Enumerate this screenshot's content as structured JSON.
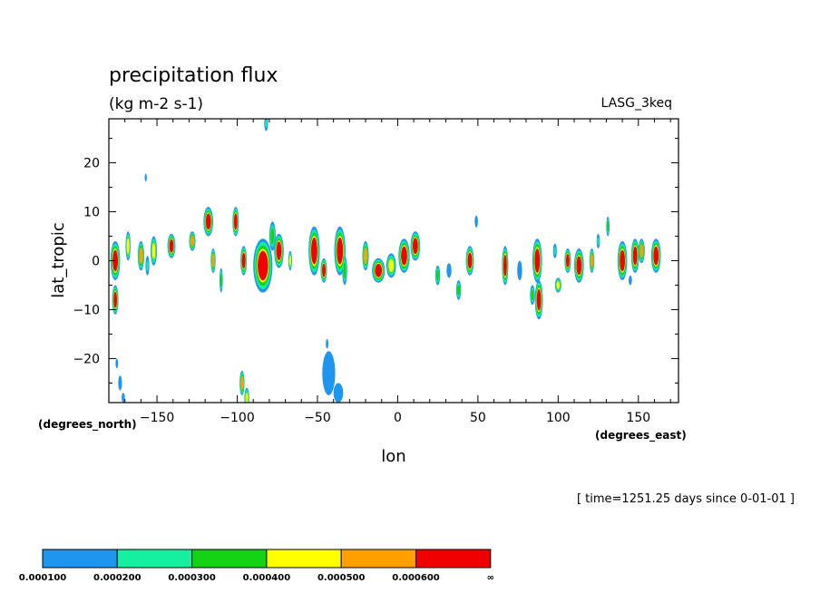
{
  "chart_data": {
    "type": "heatmap",
    "title": "precipitation flux",
    "subtitle": "(kg m-2 s-1)",
    "model_label": "LASG_3keq",
    "xlabel": "lon",
    "ylabel": "lat_tropic",
    "x_unit": "(degrees_east)",
    "y_unit": "(degrees_north)",
    "time_label": "[ time=1251.25 days since 0-01-01 ]",
    "xlim": [
      -180,
      175
    ],
    "ylim": [
      -29,
      29
    ],
    "x_ticks": [
      -150,
      -100,
      -50,
      0,
      50,
      100,
      150
    ],
    "y_ticks": [
      20,
      10,
      0,
      -10,
      -20
    ],
    "x_tick_labels": [
      "−150",
      "−100",
      "−50",
      "0",
      "50",
      "100",
      "150"
    ],
    "y_tick_labels": [
      "20",
      "10",
      "0",
      "−10",
      "−20"
    ],
    "levels": [
      0.0001,
      0.0002,
      0.0003,
      0.0004,
      0.0005,
      0.0006
    ],
    "colorbar_labels": [
      "0.000100",
      "0.000200",
      "0.000300",
      "0.000400",
      "0.000500",
      "0.000600",
      "∞"
    ],
    "colors": [
      "#1e96f0",
      "#14f0a0",
      "#14d214",
      "#ffff00",
      "#ffa000",
      "#f00000"
    ],
    "cells": [
      {
        "lon": -176,
        "lat": 0,
        "rx": 3,
        "ry": 4,
        "level": 6
      },
      {
        "lon": -168,
        "lat": 3,
        "rx": 1.5,
        "ry": 3,
        "level": 4
      },
      {
        "lon": -176,
        "lat": -8,
        "rx": 2,
        "ry": 3,
        "level": 6
      },
      {
        "lon": -175,
        "lat": -21,
        "rx": 0.8,
        "ry": 1,
        "level": 1
      },
      {
        "lon": -173,
        "lat": -25,
        "rx": 1.2,
        "ry": 1.5,
        "level": 1
      },
      {
        "lon": -171,
        "lat": -28,
        "rx": 1,
        "ry": 1,
        "level": 1
      },
      {
        "lon": -160,
        "lat": 1,
        "rx": 2,
        "ry": 3,
        "level": 5
      },
      {
        "lon": -152,
        "lat": 2,
        "rx": 2,
        "ry": 3,
        "level": 4
      },
      {
        "lon": -156,
        "lat": -1,
        "rx": 1.2,
        "ry": 2,
        "level": 2
      },
      {
        "lon": -157,
        "lat": 17,
        "rx": 0.6,
        "ry": 0.8,
        "level": 1
      },
      {
        "lon": -141,
        "lat": 3,
        "rx": 2.5,
        "ry": 2.5,
        "level": 6
      },
      {
        "lon": -128,
        "lat": 4,
        "rx": 2,
        "ry": 2,
        "level": 5
      },
      {
        "lon": -118,
        "lat": 8,
        "rx": 3,
        "ry": 3,
        "level": 6
      },
      {
        "lon": -115,
        "lat": 0,
        "rx": 1.5,
        "ry": 2.5,
        "level": 5
      },
      {
        "lon": -110,
        "lat": -4,
        "rx": 1,
        "ry": 2.5,
        "level": 3
      },
      {
        "lon": -101,
        "lat": 8,
        "rx": 2,
        "ry": 3,
        "level": 6
      },
      {
        "lon": -96,
        "lat": 0,
        "rx": 2,
        "ry": 3,
        "level": 6
      },
      {
        "lon": -84,
        "lat": -1,
        "rx": 6,
        "ry": 5.5,
        "level": 6
      },
      {
        "lon": -74,
        "lat": 2,
        "rx": 3,
        "ry": 3.5,
        "level": 6
      },
      {
        "lon": -67,
        "lat": 0,
        "rx": 1.2,
        "ry": 2,
        "level": 4
      },
      {
        "lon": -78,
        "lat": 5,
        "rx": 2,
        "ry": 3,
        "level": 3
      },
      {
        "lon": -97,
        "lat": -25,
        "rx": 1.5,
        "ry": 2.5,
        "level": 5
      },
      {
        "lon": -94,
        "lat": -28,
        "rx": 1.5,
        "ry": 2,
        "level": 4
      },
      {
        "lon": -82,
        "lat": 28,
        "rx": 1.2,
        "ry": 1.5,
        "level": 2
      },
      {
        "lon": -52,
        "lat": 2,
        "rx": 3.5,
        "ry": 5,
        "level": 6
      },
      {
        "lon": -46,
        "lat": -2,
        "rx": 2,
        "ry": 2.5,
        "level": 6
      },
      {
        "lon": -36,
        "lat": 2,
        "rx": 3.5,
        "ry": 5,
        "level": 6
      },
      {
        "lon": -33,
        "lat": -2,
        "rx": 1.5,
        "ry": 3,
        "level": 3
      },
      {
        "lon": -43,
        "lat": -23,
        "rx": 4,
        "ry": 4.5,
        "level": 1
      },
      {
        "lon": -37,
        "lat": -27,
        "rx": 3,
        "ry": 2,
        "level": 1
      },
      {
        "lon": -44,
        "lat": -17,
        "rx": 0.8,
        "ry": 1,
        "level": 1
      },
      {
        "lon": -20,
        "lat": 1,
        "rx": 2,
        "ry": 3,
        "level": 5
      },
      {
        "lon": -12,
        "lat": -2,
        "rx": 4,
        "ry": 2.5,
        "level": 6
      },
      {
        "lon": -4,
        "lat": -1,
        "rx": 3,
        "ry": 2.5,
        "level": 4
      },
      {
        "lon": 4,
        "lat": 1,
        "rx": 3.5,
        "ry": 3.5,
        "level": 6
      },
      {
        "lon": 11,
        "lat": 3,
        "rx": 3,
        "ry": 3,
        "level": 6
      },
      {
        "lon": 25,
        "lat": -3,
        "rx": 1.5,
        "ry": 2,
        "level": 3
      },
      {
        "lon": 32,
        "lat": -2,
        "rx": 1.5,
        "ry": 1.5,
        "level": 1
      },
      {
        "lon": 38,
        "lat": -6,
        "rx": 1.5,
        "ry": 2,
        "level": 3
      },
      {
        "lon": 45,
        "lat": 0,
        "rx": 2.5,
        "ry": 3,
        "level": 6
      },
      {
        "lon": 49,
        "lat": 8,
        "rx": 1,
        "ry": 1.2,
        "level": 1
      },
      {
        "lon": 67,
        "lat": -1,
        "rx": 2,
        "ry": 4,
        "level": 6
      },
      {
        "lon": 76,
        "lat": -2,
        "rx": 1.5,
        "ry": 2,
        "level": 1
      },
      {
        "lon": 87,
        "lat": 0,
        "rx": 3,
        "ry": 4.5,
        "level": 6
      },
      {
        "lon": 88,
        "lat": -8,
        "rx": 2.5,
        "ry": 4,
        "level": 6
      },
      {
        "lon": 84,
        "lat": -7,
        "rx": 1.5,
        "ry": 2,
        "level": 3
      },
      {
        "lon": 98,
        "lat": 2,
        "rx": 1.2,
        "ry": 1.5,
        "level": 2
      },
      {
        "lon": 100,
        "lat": -5,
        "rx": 2,
        "ry": 1.5,
        "level": 4
      },
      {
        "lon": 106,
        "lat": 0,
        "rx": 2,
        "ry": 2.5,
        "level": 6
      },
      {
        "lon": 113,
        "lat": -1,
        "rx": 3,
        "ry": 3.5,
        "level": 6
      },
      {
        "lon": 121,
        "lat": 0,
        "rx": 1.5,
        "ry": 2.5,
        "level": 5
      },
      {
        "lon": 125,
        "lat": 4,
        "rx": 1,
        "ry": 1.5,
        "level": 2
      },
      {
        "lon": 131,
        "lat": 7,
        "rx": 1,
        "ry": 2,
        "level": 3
      },
      {
        "lon": 140,
        "lat": 0,
        "rx": 3,
        "ry": 4,
        "level": 6
      },
      {
        "lon": 148,
        "lat": 1,
        "rx": 2.5,
        "ry": 3.5,
        "level": 6
      },
      {
        "lon": 152,
        "lat": 2,
        "rx": 2,
        "ry": 2.5,
        "level": 5
      },
      {
        "lon": 161,
        "lat": 1,
        "rx": 3,
        "ry": 3.5,
        "level": 6
      },
      {
        "lon": 145,
        "lat": -4,
        "rx": 1,
        "ry": 1,
        "level": 1
      }
    ]
  }
}
